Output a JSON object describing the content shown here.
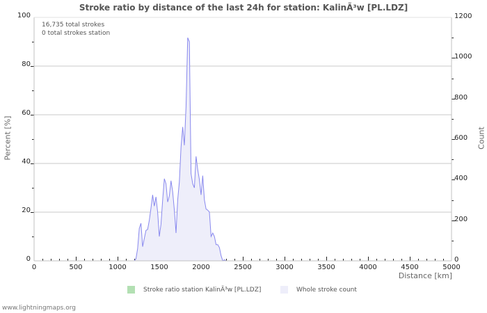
{
  "title": "Stroke ratio by distance of the last 24h for station: KalinÃ³w [PL.LDZ]",
  "info": {
    "total_strokes": "16,735 total strokes",
    "station_strokes": "0 total strokes station"
  },
  "axes": {
    "y_left_label": "Percent   [%]",
    "y_right_label": "Count",
    "x_label": "Distance   [km]",
    "y_left_ticks": [
      "100",
      "80",
      "60",
      "40",
      "20",
      "0"
    ],
    "y_right_ticks": [
      "1200",
      "1000",
      "800",
      "600",
      "400",
      "200",
      "0"
    ],
    "x_ticks": [
      "0",
      "500",
      "1000",
      "1500",
      "2000",
      "2500",
      "3000",
      "3500",
      "4000",
      "4500",
      "5000"
    ]
  },
  "legend": {
    "items": [
      {
        "label": "Stroke ratio station KalinÃ³w [PL.LDZ]",
        "color": "#b3e0b3"
      },
      {
        "label": "Whole stroke count",
        "color": "#eeeefa"
      }
    ]
  },
  "footer": "www.lightningmaps.org",
  "colors": {
    "line": "#8888ee",
    "fill": "#eeeefa",
    "grid": "#c8c8c8",
    "axis": "#c0c0c0"
  },
  "chart_data": {
    "type": "area",
    "title": "Stroke ratio by distance of the last 24h for station: KalinÃ³w [PL.LDZ]",
    "xlabel": "Distance [km]",
    "ylabel_left": "Percent [%]",
    "ylabel_right": "Count",
    "xlim": [
      0,
      5000
    ],
    "ylim_left": [
      0,
      100
    ],
    "ylim_right": [
      0,
      1200
    ],
    "grid": true,
    "legend_position": "bottom",
    "series": [
      {
        "name": "Stroke ratio station KalinÃ³w [PL.LDZ]",
        "axis": "left",
        "x": [],
        "values": []
      },
      {
        "name": "Whole stroke count",
        "axis": "right",
        "x": [
          0,
          1200,
          1220,
          1240,
          1260,
          1280,
          1300,
          1320,
          1340,
          1360,
          1380,
          1400,
          1420,
          1440,
          1460,
          1480,
          1500,
          1520,
          1540,
          1560,
          1580,
          1600,
          1620,
          1640,
          1660,
          1680,
          1700,
          1720,
          1740,
          1760,
          1780,
          1800,
          1820,
          1840,
          1860,
          1880,
          1900,
          1920,
          1940,
          1960,
          1980,
          2000,
          2020,
          2040,
          2060,
          2080,
          2100,
          2120,
          2140,
          2160,
          2180,
          2200,
          2220,
          2240,
          2260,
          2280,
          2300,
          2320,
          2400,
          5000
        ],
        "values": [
          0,
          0,
          10,
          60,
          160,
          185,
          70,
          110,
          150,
          155,
          200,
          260,
          325,
          270,
          315,
          240,
          120,
          180,
          300,
          405,
          380,
          290,
          320,
          395,
          340,
          250,
          137,
          300,
          390,
          560,
          660,
          570,
          760,
          1100,
          1080,
          430,
          380,
          360,
          515,
          450,
          400,
          325,
          420,
          300,
          255,
          250,
          240,
          120,
          137,
          120,
          80,
          80,
          65,
          25,
          0,
          5,
          0,
          0,
          0,
          0
        ]
      }
    ]
  }
}
